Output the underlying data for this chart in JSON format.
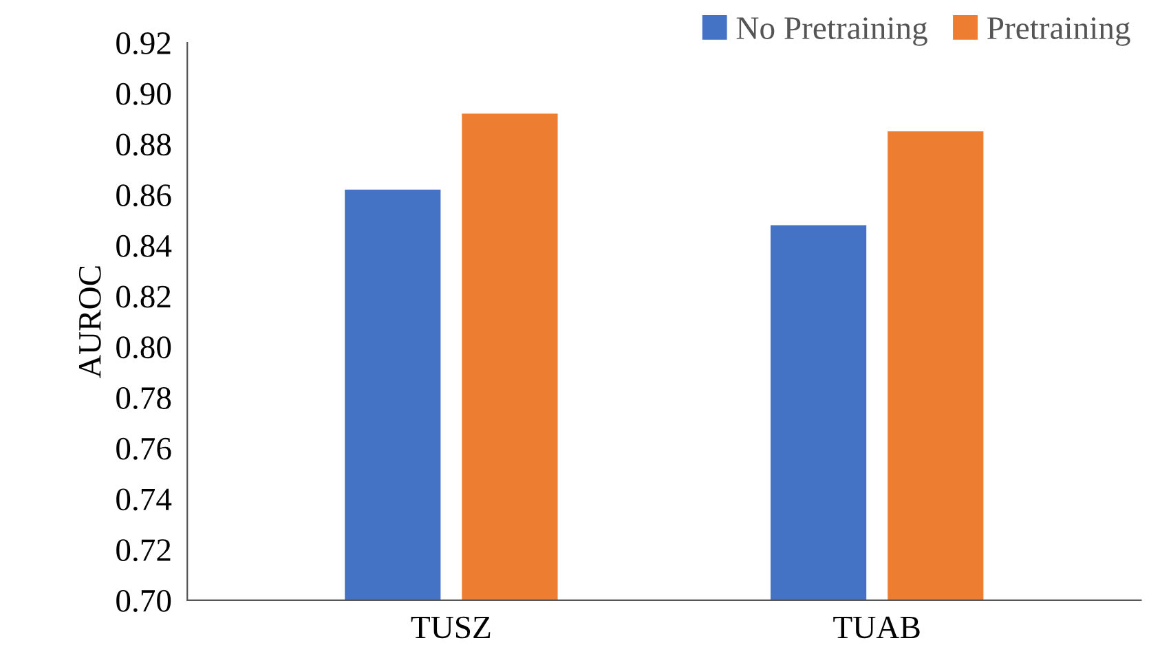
{
  "chart_data": {
    "type": "bar",
    "ylabel": "AUROC",
    "categories": [
      "TUSZ",
      "TUAB"
    ],
    "series": [
      {
        "name": "No Pretraining",
        "color": "#4472c4",
        "values": [
          0.862,
          0.848
        ]
      },
      {
        "name": "Pretraining",
        "color": "#ed7d31",
        "values": [
          0.892,
          0.885
        ]
      }
    ],
    "ylim": [
      0.7,
      0.92
    ],
    "yticks": [
      {
        "value": 0.7,
        "label": "0.70"
      },
      {
        "value": 0.72,
        "label": "0.72"
      },
      {
        "value": 0.74,
        "label": "0.74"
      },
      {
        "value": 0.76,
        "label": "0.76"
      },
      {
        "value": 0.78,
        "label": "0.78"
      },
      {
        "value": 0.8,
        "label": "0.80"
      },
      {
        "value": 0.82,
        "label": "0.82"
      },
      {
        "value": 0.84,
        "label": "0.84"
      },
      {
        "value": 0.86,
        "label": "0.86"
      },
      {
        "value": 0.88,
        "label": "0.88"
      },
      {
        "value": 0.9,
        "label": "0.90"
      },
      {
        "value": 0.92,
        "label": "0.92"
      }
    ],
    "grid": false,
    "legend": "top right"
  }
}
